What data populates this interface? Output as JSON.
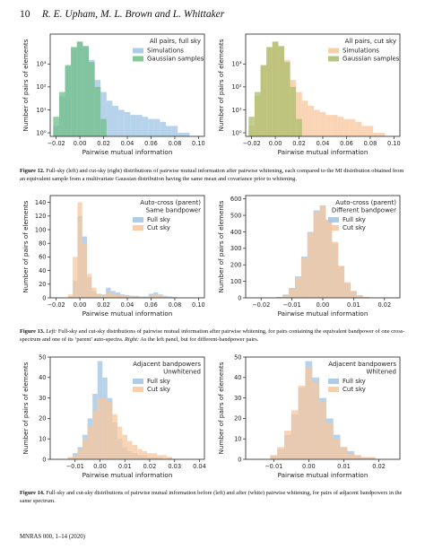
{
  "header": {
    "page_number": "10",
    "authors": "R. E. Upham, M. L. Brown and L. Whittaker"
  },
  "footer": {
    "text": "MNRAS 000, 1–14 (2020)"
  },
  "colors": {
    "blue": "#9fc3e4",
    "green": "#6fbf86",
    "orange": "#f8c79c",
    "olive": "#a9bc6c"
  },
  "figures": [
    {
      "label": "Figure 12.",
      "caption": "Full-sky (left) and cut-sky (right) distributions of pairwise mutual information after pairwise whitening, each compared to the MI distribution obtained from an equivalent sample from a multivariate Gaussian distribution having the same mean and covariance prior to whitening.",
      "panels": [
        {
          "title": [
            "All pairs, full sky"
          ],
          "legend": [
            "Simulations",
            "Gaussian samples"
          ]
        },
        {
          "title": [
            "All pairs, cut sky"
          ],
          "legend": [
            "Simulations",
            "Gaussian samples"
          ]
        }
      ]
    },
    {
      "label": "Figure 13.",
      "caption_left": "Left:",
      "caption": "Full-sky and cut-sky distributions of pairwise mutual information after pairwise whitening, for pairs containing the equivalent bandpower of one cross-spectrum and one of its ‘parent’ auto-spectra.",
      "caption_right": "Right:",
      "caption2": "As the left panel, but for different-bandpower pairs.",
      "panels": [
        {
          "title": [
            "Auto-cross (parent)",
            "Same bandpower"
          ],
          "legend": [
            "Full sky",
            "Cut sky"
          ]
        },
        {
          "title": [
            "Auto-cross (parent)",
            "Different bandpower"
          ],
          "legend": [
            "Full sky",
            "Cut sky"
          ]
        }
      ]
    },
    {
      "label": "Figure 14.",
      "caption": "Full-sky and cut-sky distributions of pairwise mutual information before (left) and after (white) pairwise whitening, for pairs of adjacent bandpowers in the same spectrum.",
      "panels": [
        {
          "title": [
            "Adjacent bandpowers",
            "Unwhitened"
          ],
          "legend": [
            "Full sky",
            "Cut sky"
          ]
        },
        {
          "title": [
            "Adjacent bandpowers",
            "Whitened"
          ],
          "legend": [
            "Full sky",
            "Cut sky"
          ]
        }
      ]
    }
  ],
  "chart_data": [
    {
      "type": "histogram",
      "xlabel": "Pairwise mutual information",
      "ylabel": "Number of pairs of elements",
      "xlim": [
        -0.025,
        0.105
      ],
      "ylim": [
        0.7,
        20000
      ],
      "yscale": "log",
      "xticks": [
        -0.02,
        0.0,
        0.02,
        0.04,
        0.06,
        0.08,
        0.1
      ],
      "xticklabels": [
        "−0.02",
        "0.00",
        "0.02",
        "0.04",
        "0.06",
        "0.08",
        "0.10"
      ],
      "yticks": [
        1,
        10,
        100,
        1000
      ],
      "yticklabels": [
        "10⁰",
        "10¹",
        "10²",
        "10³"
      ],
      "series": [
        {
          "name": "Simulations",
          "color": "#9fc3e4",
          "x": [
            -0.02,
            -0.015,
            -0.01,
            -0.005,
            0.0,
            0.005,
            0.01,
            0.015,
            0.02,
            0.025,
            0.03,
            0.035,
            0.04,
            0.045,
            0.05,
            0.055,
            0.06,
            0.065,
            0.07,
            0.075,
            0.08,
            0.085,
            0.09
          ],
          "values": [
            2,
            40,
            800,
            5000,
            9000,
            6000,
            1500,
            200,
            60,
            25,
            15,
            10,
            8,
            6,
            6,
            5,
            4,
            4,
            3,
            2,
            2,
            1,
            1
          ]
        },
        {
          "name": "Gaussian samples",
          "color": "#6fbf86",
          "x": [
            -0.02,
            -0.015,
            -0.01,
            -0.005,
            0.0,
            0.005,
            0.01,
            0.015,
            0.02
          ],
          "values": [
            5,
            60,
            900,
            5500,
            9500,
            6000,
            1200,
            100,
            4
          ]
        }
      ]
    },
    {
      "type": "histogram",
      "xlabel": "Pairwise mutual information",
      "ylabel": "Number of pairs of elements",
      "xlim": [
        -0.025,
        0.105
      ],
      "ylim": [
        0.7,
        20000
      ],
      "yscale": "log",
      "xticks": [
        -0.02,
        0.0,
        0.02,
        0.04,
        0.06,
        0.08,
        0.1
      ],
      "xticklabels": [
        "−0.02",
        "0.00",
        "0.02",
        "0.04",
        "0.06",
        "0.08",
        "0.10"
      ],
      "yticks": [
        1,
        10,
        100,
        1000
      ],
      "yticklabels": [
        "10⁰",
        "10¹",
        "10²",
        "10³"
      ],
      "series": [
        {
          "name": "Simulations",
          "color": "#f8c79c",
          "x": [
            -0.02,
            -0.015,
            -0.01,
            -0.005,
            0.0,
            0.005,
            0.01,
            0.015,
            0.02,
            0.025,
            0.03,
            0.035,
            0.04,
            0.045,
            0.05,
            0.055,
            0.06,
            0.065,
            0.07,
            0.075,
            0.08,
            0.085,
            0.09
          ],
          "values": [
            2,
            40,
            800,
            5000,
            9000,
            6000,
            1500,
            200,
            60,
            25,
            15,
            10,
            8,
            6,
            6,
            5,
            4,
            4,
            3,
            2,
            2,
            1,
            1
          ]
        },
        {
          "name": "Gaussian samples",
          "color": "#a9bc6c",
          "x": [
            -0.02,
            -0.015,
            -0.01,
            -0.005,
            0.0,
            0.005,
            0.01,
            0.015,
            0.02
          ],
          "values": [
            5,
            60,
            900,
            5500,
            9500,
            6000,
            1200,
            100,
            4
          ]
        }
      ]
    },
    {
      "type": "histogram",
      "xlabel": "Pairwise mutual information",
      "ylabel": "Number of pairs of elements",
      "xlim": [
        -0.025,
        0.105
      ],
      "ylim": [
        0,
        150
      ],
      "yscale": "linear",
      "xticks": [
        -0.02,
        0.0,
        0.02,
        0.04,
        0.06,
        0.08,
        0.1
      ],
      "xticklabels": [
        "−0.02",
        "0.00",
        "0.02",
        "0.04",
        "0.06",
        "0.08",
        "0.10"
      ],
      "yticks": [
        0,
        20,
        40,
        60,
        80,
        100,
        120,
        140
      ],
      "yticklabels": [
        "0",
        "20",
        "40",
        "60",
        "80",
        "100",
        "120",
        "140"
      ],
      "series": [
        {
          "name": "Full sky",
          "color": "#9fc3e4",
          "x": [
            -0.008,
            -0.004,
            0.0,
            0.004,
            0.008,
            0.012,
            0.016,
            0.02,
            0.024,
            0.028,
            0.032,
            0.036,
            0.04,
            0.044,
            0.048,
            0.052,
            0.056,
            0.06,
            0.064,
            0.068,
            0.072,
            0.076,
            0.08
          ],
          "values": [
            2,
            25,
            120,
            90,
            30,
            10,
            6,
            5,
            15,
            10,
            8,
            5,
            4,
            3,
            3,
            2,
            2,
            6,
            8,
            5,
            3,
            2,
            1
          ]
        },
        {
          "name": "Cut sky",
          "color": "#f8c79c",
          "x": [
            -0.008,
            -0.004,
            0.0,
            0.004,
            0.008,
            0.012,
            0.016,
            0.02,
            0.024,
            0.028,
            0.032,
            0.036,
            0.04,
            0.044,
            0.048,
            0.052,
            0.056,
            0.06,
            0.064,
            0.068,
            0.072,
            0.076,
            0.08
          ],
          "values": [
            5,
            60,
            140,
            80,
            35,
            15,
            6,
            4,
            8,
            6,
            5,
            4,
            3,
            2,
            2,
            2,
            1,
            3,
            5,
            4,
            2,
            1,
            1
          ]
        }
      ]
    },
    {
      "type": "histogram",
      "xlabel": "Pairwise mutual information",
      "ylabel": "Number of pairs of elements",
      "xlim": [
        -0.025,
        0.025
      ],
      "ylim": [
        0,
        620
      ],
      "yscale": "linear",
      "xticks": [
        -0.02,
        -0.01,
        0.0,
        0.01,
        0.02
      ],
      "xticklabels": [
        "−0.02",
        "−0.01",
        "0.00",
        "0.01",
        "0.02"
      ],
      "yticks": [
        0,
        100,
        200,
        300,
        400,
        500,
        600
      ],
      "yticklabels": [
        "0",
        "100",
        "200",
        "300",
        "400",
        "500",
        "600"
      ],
      "series": [
        {
          "name": "Full sky",
          "color": "#9fc3e4",
          "x": [
            -0.014,
            -0.012,
            -0.01,
            -0.008,
            -0.006,
            -0.004,
            -0.002,
            0.0,
            0.002,
            0.004,
            0.006,
            0.008,
            0.01,
            0.012,
            0.014,
            0.016
          ],
          "values": [
            5,
            20,
            60,
            130,
            250,
            400,
            530,
            560,
            470,
            330,
            190,
            90,
            40,
            15,
            5,
            2
          ]
        },
        {
          "name": "Cut sky",
          "color": "#f8c79c",
          "x": [
            -0.014,
            -0.012,
            -0.01,
            -0.008,
            -0.006,
            -0.004,
            -0.002,
            0.0,
            0.002,
            0.004,
            0.006,
            0.008,
            0.01,
            0.012,
            0.014,
            0.016
          ],
          "values": [
            5,
            18,
            55,
            125,
            240,
            395,
            520,
            555,
            475,
            340,
            195,
            95,
            42,
            16,
            6,
            2
          ]
        }
      ]
    },
    {
      "type": "histogram",
      "xlabel": "Pairwise mutual information",
      "ylabel": "Number of pairs of elements",
      "xlim": [
        -0.02,
        0.042
      ],
      "ylim": [
        0,
        50
      ],
      "yscale": "linear",
      "xticks": [
        -0.01,
        0.0,
        0.01,
        0.02,
        0.03,
        0.04
      ],
      "xticklabels": [
        "−0.01",
        "0.00",
        "0.01",
        "0.02",
        "0.03",
        "0.04"
      ],
      "yticks": [
        0,
        10,
        20,
        30,
        40,
        50
      ],
      "yticklabels": [
        "0",
        "10",
        "20",
        "30",
        "40",
        "50"
      ],
      "series": [
        {
          "name": "Full sky",
          "color": "#9fc3e4",
          "x": [
            -0.012,
            -0.01,
            -0.008,
            -0.006,
            -0.004,
            -0.002,
            0.0,
            0.002,
            0.004,
            0.006,
            0.008,
            0.01,
            0.012,
            0.014,
            0.016,
            0.018,
            0.02,
            0.022,
            0.024,
            0.026,
            0.028
          ],
          "values": [
            1,
            3,
            6,
            12,
            20,
            32,
            48,
            40,
            30,
            18,
            10,
            6,
            4,
            3,
            2,
            2,
            1,
            1,
            1,
            0,
            1
          ]
        },
        {
          "name": "Cut sky",
          "color": "#f8c79c",
          "x": [
            -0.012,
            -0.01,
            -0.008,
            -0.006,
            -0.004,
            -0.002,
            0.0,
            0.002,
            0.004,
            0.006,
            0.008,
            0.01,
            0.012,
            0.014,
            0.016,
            0.018,
            0.02,
            0.022,
            0.024,
            0.026,
            0.028
          ],
          "values": [
            1,
            2,
            5,
            10,
            16,
            24,
            30,
            30,
            28,
            22,
            16,
            12,
            9,
            7,
            5,
            4,
            3,
            3,
            2,
            2,
            1
          ]
        }
      ]
    },
    {
      "type": "histogram",
      "xlabel": "Pairwise mutual information",
      "ylabel": "Number of pairs of elements",
      "xlim": [
        -0.018,
        0.026
      ],
      "ylim": [
        0,
        50
      ],
      "yscale": "linear",
      "xticks": [
        -0.01,
        0.0,
        0.01,
        0.02
      ],
      "xticklabels": [
        "−0.01",
        "0.00",
        "0.01",
        "0.02"
      ],
      "yticks": [
        0,
        10,
        20,
        30,
        40,
        50
      ],
      "yticklabels": [
        "0",
        "10",
        "20",
        "30",
        "40",
        "50"
      ],
      "series": [
        {
          "name": "Full sky",
          "color": "#9fc3e4",
          "x": [
            -0.01,
            -0.008,
            -0.006,
            -0.004,
            -0.002,
            0.0,
            0.002,
            0.004,
            0.006,
            0.008,
            0.01,
            0.012,
            0.014,
            0.016,
            0.018
          ],
          "values": [
            2,
            5,
            12,
            22,
            35,
            48,
            40,
            30,
            20,
            12,
            6,
            4,
            2,
            1,
            1
          ]
        },
        {
          "name": "Cut sky",
          "color": "#f8c79c",
          "x": [
            -0.01,
            -0.008,
            -0.006,
            -0.004,
            -0.002,
            0.0,
            0.002,
            0.004,
            0.006,
            0.008,
            0.01,
            0.012,
            0.014,
            0.016,
            0.018
          ],
          "values": [
            2,
            6,
            14,
            24,
            36,
            45,
            38,
            28,
            18,
            10,
            6,
            3,
            2,
            1,
            1
          ]
        }
      ]
    }
  ]
}
